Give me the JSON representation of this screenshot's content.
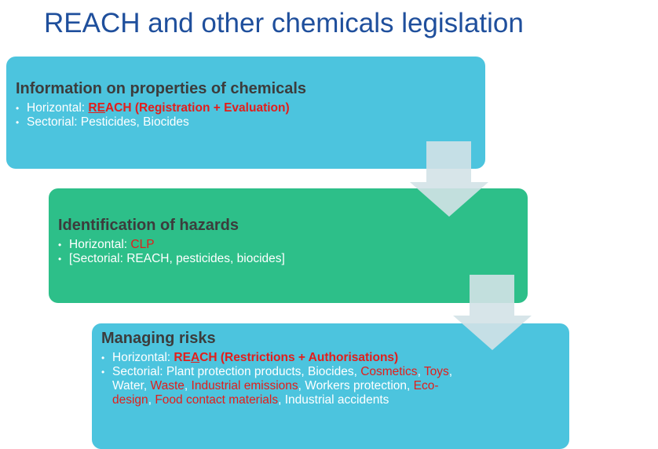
{
  "title": "REACH and other chemicals legislation",
  "boxes": [
    {
      "heading": "Information on properties of chemicals",
      "bullets": [
        [
          {
            "text": "Horizontal: ",
            "style": "plain"
          },
          {
            "text": "RE",
            "style": "red-bold-underline"
          },
          {
            "text": "ACH (Registration + Evaluation)",
            "style": "red-bold"
          }
        ],
        [
          {
            "text": "Sectorial: Pesticides, Biocides",
            "style": "plain"
          }
        ]
      ]
    },
    {
      "heading": "Identification of hazards",
      "bullets": [
        [
          {
            "text": "Horizontal: ",
            "style": "plain"
          },
          {
            "text": "CLP",
            "style": "red"
          }
        ],
        [
          {
            "text": "[Sectorial: REACH, pesticides, biocides]",
            "style": "plain"
          }
        ]
      ]
    },
    {
      "heading": "Managing risks",
      "bullets": [
        [
          {
            "text": "Horizontal: ",
            "style": "plain"
          },
          {
            "text": "RE",
            "style": "red-bold"
          },
          {
            "text": "A",
            "style": "red-bold-underline"
          },
          {
            "text": "CH (Restrictions + Authorisations)",
            "style": "red-bold"
          }
        ],
        [
          {
            "text": "Sectorial: Plant protection products, Biocides, ",
            "style": "plain"
          },
          {
            "text": "Cosmetics",
            "style": "red"
          },
          {
            "text": ", ",
            "style": "plain"
          },
          {
            "text": "Toys",
            "style": "red"
          },
          {
            "text": ", Water, ",
            "style": "plain"
          },
          {
            "text": "Waste",
            "style": "red"
          },
          {
            "text": ", ",
            "style": "plain"
          },
          {
            "text": "Industrial emissions",
            "style": "red"
          },
          {
            "text": ", Workers protection, ",
            "style": "plain"
          },
          {
            "text": "Eco-design",
            "style": "red"
          },
          {
            "text": ", ",
            "style": "plain"
          },
          {
            "text": "Food contact materials",
            "style": "red"
          },
          {
            "text": ", Industrial accidents",
            "style": "plain"
          }
        ]
      ]
    }
  ]
}
